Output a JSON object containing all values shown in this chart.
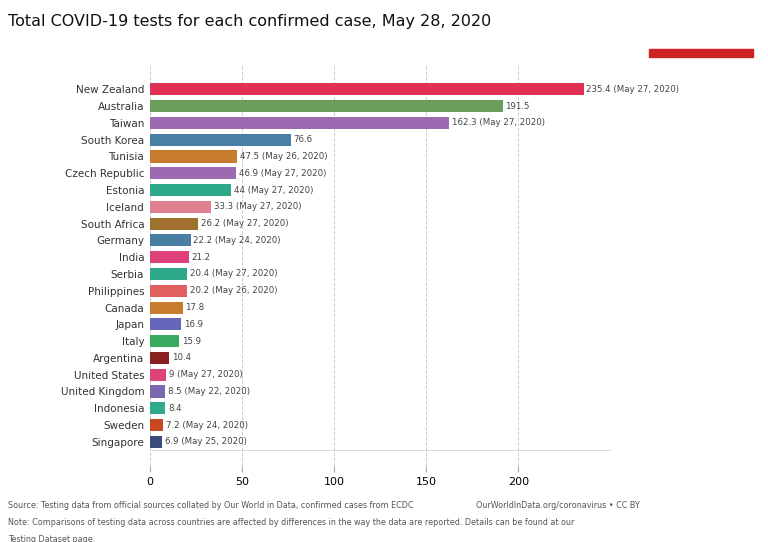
{
  "title": "Total COVID-19 tests for each confirmed case, May 28, 2020",
  "countries": [
    "New Zealand",
    "Australia",
    "Taiwan",
    "South Korea",
    "Tunisia",
    "Czech Republic",
    "Estonia",
    "Iceland",
    "South Africa",
    "Germany",
    "India",
    "Serbia",
    "Philippines",
    "Canada",
    "Japan",
    "Italy",
    "Argentina",
    "United States",
    "United Kingdom",
    "Indonesia",
    "Sweden",
    "Singapore"
  ],
  "values": [
    235.4,
    191.5,
    162.3,
    76.6,
    47.5,
    46.9,
    44,
    33.3,
    26.2,
    22.2,
    21.2,
    20.4,
    20.2,
    17.8,
    16.9,
    15.9,
    10.4,
    9,
    8.5,
    8.4,
    7.2,
    6.9
  ],
  "labels": [
    "235.4 (May 27, 2020)",
    "191.5",
    "162.3 (May 27, 2020)",
    "76.6",
    "47.5 (May 26, 2020)",
    "46.9 (May 27, 2020)",
    "44 (May 27, 2020)",
    "33.3 (May 27, 2020)",
    "26.2 (May 27, 2020)",
    "22.2 (May 24, 2020)",
    "21.2",
    "20.4 (May 27, 2020)",
    "20.2 (May 26, 2020)",
    "17.8",
    "16.9",
    "15.9",
    "10.4",
    "9 (May 27, 2020)",
    "8.5 (May 22, 2020)",
    "8.4",
    "7.2 (May 24, 2020)",
    "6.9 (May 25, 2020)"
  ],
  "colors": [
    "#e03155",
    "#6a9e5a",
    "#9b6ab0",
    "#4a7fa5",
    "#c87d2e",
    "#9b6ab0",
    "#2eaa8a",
    "#e08090",
    "#a07030",
    "#4a7fa5",
    "#e0417a",
    "#2eaa8a",
    "#e06060",
    "#c87d2e",
    "#6666bb",
    "#3aaa60",
    "#8b2020",
    "#e0417a",
    "#7b68b0",
    "#2eaa8a",
    "#c84820",
    "#3a4a7a"
  ],
  "xlim": [
    0,
    250
  ],
  "xticks": [
    0,
    50,
    100,
    150,
    200
  ],
  "footer_source": "Source: Testing data from official sources collated by Our World in Data, confirmed cases from ECDC",
  "footer_right": "OurWorldInData.org/coronavirus • CC BY",
  "footer_note": "Note: Comparisons of testing data across countries are affected by differences in the way the data are reported. Details can be found at our",
  "footer_note2": "Testing Dataset page.",
  "logo_bg": "#1a3a5c",
  "logo_red": "#cc2222",
  "background_color": "#ffffff"
}
